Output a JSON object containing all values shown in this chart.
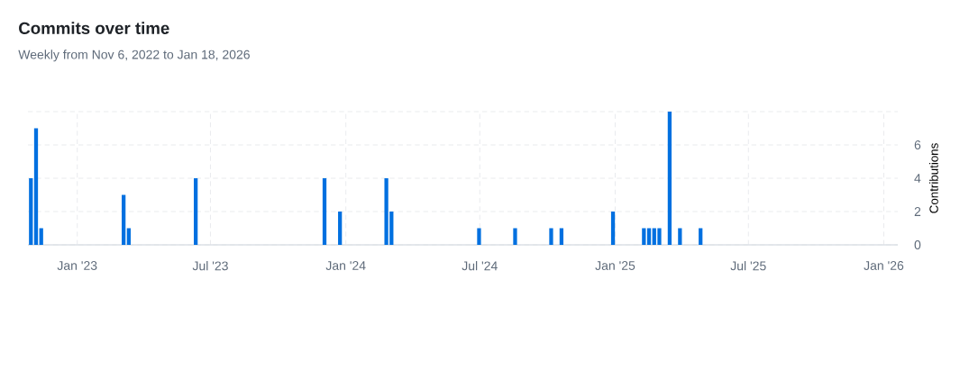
{
  "chart_data": {
    "type": "bar",
    "title": "Commits over time",
    "subtitle": "Weekly from Nov 6, 2022 to Jan 18, 2026",
    "ylabel": "Contributions",
    "x": [
      "2022-10-30",
      "2022-11-06",
      "2022-11-13",
      "2023-03-05",
      "2023-03-12",
      "2023-06-11",
      "2023-12-03",
      "2023-12-24",
      "2024-02-25",
      "2024-03-03",
      "2024-06-30",
      "2024-08-18",
      "2024-10-06",
      "2024-10-20",
      "2024-12-29",
      "2025-02-09",
      "2025-02-16",
      "2025-02-23",
      "2025-03-02",
      "2025-03-16",
      "2025-03-30",
      "2025-04-27"
    ],
    "values": [
      4,
      7,
      1,
      3,
      1,
      4,
      4,
      2,
      4,
      2,
      1,
      1,
      1,
      1,
      2,
      1,
      1,
      1,
      1,
      8,
      1,
      1
    ],
    "color": "#0070e0",
    "xlim": [
      "2022-10-26",
      "2026-01-20"
    ],
    "xticks": [
      {
        "value": "2023-01-01",
        "label": "Jan '23"
      },
      {
        "value": "2023-07-01",
        "label": "Jul '23"
      },
      {
        "value": "2024-01-01",
        "label": "Jan '24"
      },
      {
        "value": "2024-07-01",
        "label": "Jul '24"
      },
      {
        "value": "2025-01-01",
        "label": "Jan '25"
      },
      {
        "value": "2025-07-01",
        "label": "Jul '25"
      },
      {
        "value": "2026-01-01",
        "label": "Jan '26"
      }
    ],
    "ylim": [
      0,
      8
    ],
    "yticks": [
      0,
      2,
      4,
      6,
      {
        "value": 8,
        "label": null
      }
    ],
    "grid": true
  }
}
